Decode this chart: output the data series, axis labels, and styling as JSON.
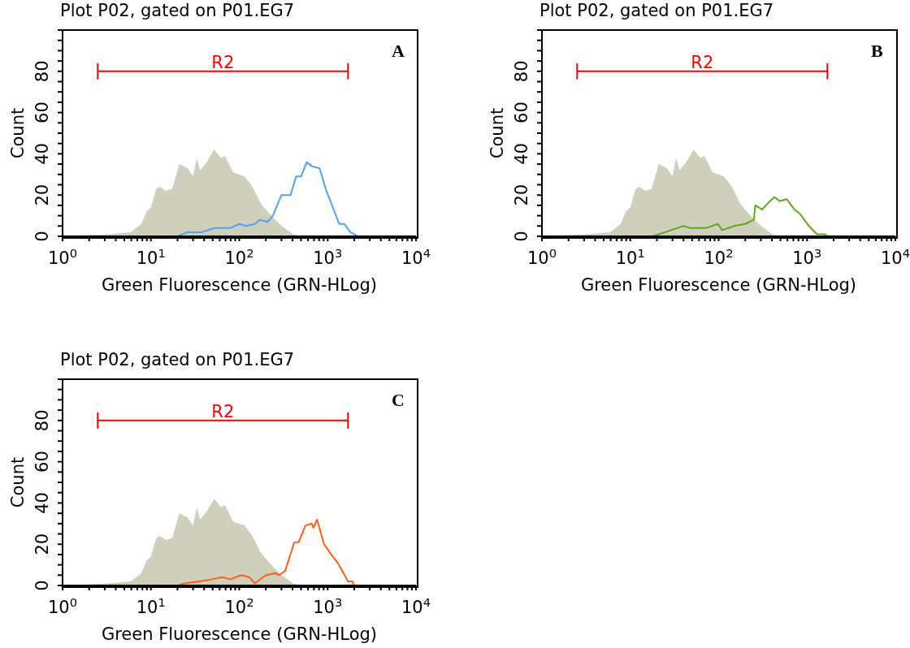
{
  "chart_data": [
    {
      "type": "line",
      "title": "Plot P02, gated on P01.EG7",
      "xlabel": "Green Fluorescence (GRN-HLog)",
      "ylabel": "Count",
      "annotations": [
        "A"
      ],
      "log": "x",
      "xlim": [
        1,
        10000
      ],
      "ylim": [
        0,
        100
      ],
      "xticks": [
        {
          "value": 1,
          "label": "10$^{0}$"
        },
        {
          "value": 2,
          "label": null
        },
        {
          "value": 3,
          "label": null
        },
        {
          "value": 4,
          "label": null
        },
        {
          "value": 5,
          "label": null
        },
        {
          "value": 6,
          "label": null
        },
        {
          "value": 7,
          "label": null
        },
        {
          "value": 8,
          "label": null
        },
        {
          "value": 9,
          "label": null
        },
        {
          "value": 10,
          "label": "10$^{1}$"
        },
        {
          "value": 20,
          "label": null
        },
        {
          "value": 30,
          "label": null
        },
        {
          "value": 40,
          "label": null
        },
        {
          "value": 50,
          "label": null
        },
        {
          "value": 60,
          "label": null
        },
        {
          "value": 70,
          "label": null
        },
        {
          "value": 80,
          "label": null
        },
        {
          "value": 90,
          "label": null
        },
        {
          "value": 100,
          "label": "10$^{2}$"
        },
        {
          "value": 200,
          "label": null
        },
        {
          "value": 300,
          "label": null
        },
        {
          "value": 400,
          "label": null
        },
        {
          "value": 500,
          "label": null
        },
        {
          "value": 600,
          "label": null
        },
        {
          "value": 700,
          "label": null
        },
        {
          "value": 800,
          "label": null
        },
        {
          "value": 900,
          "label": null
        },
        {
          "value": 1000,
          "label": "10$^{3}$"
        },
        {
          "value": 2000,
          "label": null
        },
        {
          "value": 3000,
          "label": null
        },
        {
          "value": 4000,
          "label": null
        },
        {
          "value": 5000,
          "label": null
        },
        {
          "value": 6000,
          "label": null
        },
        {
          "value": 7000,
          "label": null
        },
        {
          "value": 8000,
          "label": null
        },
        {
          "value": 9000,
          "label": null
        },
        {
          "value": 10000,
          "label": "10$^{4}$"
        }
      ],
      "yticks": [
        0,
        {
          "value": 5,
          "label": null
        },
        {
          "value": 10,
          "label": null
        },
        {
          "value": 15,
          "label": null
        },
        20,
        {
          "value": 25,
          "label": null
        },
        {
          "value": 30,
          "label": null
        },
        {
          "value": 35,
          "label": null
        },
        40,
        {
          "value": 45,
          "label": null
        },
        {
          "value": 50,
          "label": null
        },
        {
          "value": 55,
          "label": null
        },
        60,
        {
          "value": 65,
          "label": null
        },
        {
          "value": 70,
          "label": null
        },
        {
          "value": 75,
          "label": null
        },
        80,
        {
          "value": 85,
          "label": null
        },
        {
          "value": 90,
          "label": null
        },
        {
          "value": 95,
          "label": null
        },
        {
          "value": 100,
          "label": null
        }
      ],
      "series": [
        {
          "type": "area",
          "color": "#d0cfbc",
          "x": [
            1,
            3.3,
            5.9,
            7.8,
            8.9,
            10,
            11.5,
            12.6,
            14.8,
            17.4,
            21,
            26,
            30,
            33,
            36,
            43,
            52,
            62,
            69,
            85,
            115,
            141,
            174,
            229,
            302,
            407,
            501,
            10000
          ],
          "values": [
            0,
            1,
            2,
            6,
            12,
            14,
            23,
            24,
            22,
            23,
            35,
            33,
            29,
            38,
            32,
            36,
            42,
            38,
            39,
            31,
            29,
            24,
            16,
            10,
            5,
            1,
            0,
            0
          ]
        },
        {
          "type": "line",
          "color": "#4da3f5",
          "x": [
            1,
            20,
            26,
            38,
            52,
            79,
            100,
            120,
            150,
            170,
            210,
            240,
            300,
            380,
            440,
            500,
            580,
            660,
            810,
            950,
            1100,
            1350,
            1550,
            1800,
            2000,
            2200,
            10000
          ],
          "values": [
            0,
            0,
            2,
            2,
            4,
            4,
            6,
            5,
            6,
            8,
            7,
            10,
            20,
            20,
            29,
            29,
            36,
            34,
            33,
            23,
            16,
            6,
            6,
            2,
            1,
            0,
            0
          ]
        },
        {
          "type": "line",
          "name": "R2",
          "color": "#ff0000",
          "x": [
            2.5,
            1700
          ],
          "values": [
            80,
            80
          ]
        }
      ]
    },
    {
      "type": "line",
      "title": "Plot P02, gated on P01.EG7",
      "xlabel": "Green Fluorescence (GRN-HLog)",
      "ylabel": "Count",
      "annotations": [
        "B"
      ],
      "log": "x",
      "xlim": [
        1,
        10000
      ],
      "ylim": [
        0,
        100
      ],
      "xticks": [
        {
          "value": 1,
          "label": "10$^{0}$"
        },
        {
          "value": 2,
          "label": null
        },
        {
          "value": 3,
          "label": null
        },
        {
          "value": 4,
          "label": null
        },
        {
          "value": 5,
          "label": null
        },
        {
          "value": 6,
          "label": null
        },
        {
          "value": 7,
          "label": null
        },
        {
          "value": 8,
          "label": null
        },
        {
          "value": 9,
          "label": null
        },
        {
          "value": 10,
          "label": "10$^{1}$"
        },
        {
          "value": 20,
          "label": null
        },
        {
          "value": 30,
          "label": null
        },
        {
          "value": 40,
          "label": null
        },
        {
          "value": 50,
          "label": null
        },
        {
          "value": 60,
          "label": null
        },
        {
          "value": 70,
          "label": null
        },
        {
          "value": 80,
          "label": null
        },
        {
          "value": 90,
          "label": null
        },
        {
          "value": 100,
          "label": "10$^{2}$"
        },
        {
          "value": 200,
          "label": null
        },
        {
          "value": 300,
          "label": null
        },
        {
          "value": 400,
          "label": null
        },
        {
          "value": 500,
          "label": null
        },
        {
          "value": 600,
          "label": null
        },
        {
          "value": 700,
          "label": null
        },
        {
          "value": 800,
          "label": null
        },
        {
          "value": 900,
          "label": null
        },
        {
          "value": 1000,
          "label": "10$^{3}$"
        },
        {
          "value": 2000,
          "label": null
        },
        {
          "value": 3000,
          "label": null
        },
        {
          "value": 4000,
          "label": null
        },
        {
          "value": 5000,
          "label": null
        },
        {
          "value": 6000,
          "label": null
        },
        {
          "value": 7000,
          "label": null
        },
        {
          "value": 8000,
          "label": null
        },
        {
          "value": 9000,
          "label": null
        },
        {
          "value": 10000,
          "label": "10$^{4}$"
        }
      ],
      "yticks": [
        0,
        {
          "value": 5,
          "label": null
        },
        {
          "value": 10,
          "label": null
        },
        {
          "value": 15,
          "label": null
        },
        20,
        {
          "value": 25,
          "label": null
        },
        {
          "value": 30,
          "label": null
        },
        {
          "value": 35,
          "label": null
        },
        40,
        {
          "value": 45,
          "label": null
        },
        {
          "value": 50,
          "label": null
        },
        {
          "value": 55,
          "label": null
        },
        60,
        {
          "value": 65,
          "label": null
        },
        {
          "value": 70,
          "label": null
        },
        {
          "value": 75,
          "label": null
        },
        80,
        {
          "value": 85,
          "label": null
        },
        {
          "value": 90,
          "label": null
        },
        {
          "value": 95,
          "label": null
        },
        {
          "value": 100,
          "label": null
        }
      ],
      "series": [
        {
          "type": "area",
          "color": "#d0cfbc",
          "x": [
            1,
            3.3,
            5.9,
            7.8,
            8.9,
            10,
            11.5,
            12.6,
            14.8,
            17.4,
            21,
            26,
            30,
            33,
            36,
            43,
            52,
            62,
            69,
            85,
            115,
            141,
            174,
            229,
            302,
            407,
            501,
            10000
          ],
          "values": [
            0,
            1,
            2,
            6,
            12,
            14,
            23,
            24,
            22,
            23,
            35,
            33,
            29,
            38,
            32,
            36,
            42,
            38,
            39,
            31,
            29,
            24,
            16,
            10,
            5,
            1,
            0,
            0
          ]
        },
        {
          "type": "line",
          "color": "#5aaa1a",
          "x": [
            1,
            18,
            21,
            29,
            40,
            48,
            59,
            72,
            98,
            110,
            150,
            200,
            250,
            260,
            310,
            380,
            430,
            490,
            590,
            720,
            830,
            1050,
            1300,
            1600,
            1700,
            10000
          ],
          "values": [
            0,
            0,
            1,
            3,
            5,
            4,
            4,
            4,
            6,
            3,
            5,
            6,
            8,
            15,
            13,
            17,
            19,
            17,
            18,
            13,
            11,
            5,
            1,
            1,
            0,
            0
          ]
        },
        {
          "type": "line",
          "name": "R2",
          "color": "#ff0000",
          "x": [
            2.5,
            1700
          ],
          "values": [
            80,
            80
          ]
        }
      ]
    },
    {
      "type": "line",
      "title": "Plot P02, gated on P01.EG7",
      "xlabel": "Green Fluorescence (GRN-HLog)",
      "ylabel": "Count",
      "annotations": [
        "C"
      ],
      "log": "x",
      "xlim": [
        1,
        10000
      ],
      "ylim": [
        0,
        100
      ],
      "xticks": [
        {
          "value": 1,
          "label": "10$^{0}$"
        },
        {
          "value": 2,
          "label": null
        },
        {
          "value": 3,
          "label": null
        },
        {
          "value": 4,
          "label": null
        },
        {
          "value": 5,
          "label": null
        },
        {
          "value": 6,
          "label": null
        },
        {
          "value": 7,
          "label": null
        },
        {
          "value": 8,
          "label": null
        },
        {
          "value": 9,
          "label": null
        },
        {
          "value": 10,
          "label": "10$^{1}$"
        },
        {
          "value": 20,
          "label": null
        },
        {
          "value": 30,
          "label": null
        },
        {
          "value": 40,
          "label": null
        },
        {
          "value": 50,
          "label": null
        },
        {
          "value": 60,
          "label": null
        },
        {
          "value": 70,
          "label": null
        },
        {
          "value": 80,
          "label": null
        },
        {
          "value": 90,
          "label": null
        },
        {
          "value": 100,
          "label": "10$^{2}$"
        },
        {
          "value": 200,
          "label": null
        },
        {
          "value": 300,
          "label": null
        },
        {
          "value": 400,
          "label": null
        },
        {
          "value": 500,
          "label": null
        },
        {
          "value": 600,
          "label": null
        },
        {
          "value": 700,
          "label": null
        },
        {
          "value": 800,
          "label": null
        },
        {
          "value": 900,
          "label": null
        },
        {
          "value": 1000,
          "label": "10$^{3}$"
        },
        {
          "value": 2000,
          "label": null
        },
        {
          "value": 3000,
          "label": null
        },
        {
          "value": 4000,
          "label": null
        },
        {
          "value": 5000,
          "label": null
        },
        {
          "value": 6000,
          "label": null
        },
        {
          "value": 7000,
          "label": null
        },
        {
          "value": 8000,
          "label": null
        },
        {
          "value": 9000,
          "label": null
        },
        {
          "value": 10000,
          "label": "10$^{4}$"
        }
      ],
      "yticks": [
        0,
        {
          "value": 5,
          "label": null
        },
        {
          "value": 10,
          "label": null
        },
        {
          "value": 15,
          "label": null
        },
        20,
        {
          "value": 25,
          "label": null
        },
        {
          "value": 30,
          "label": null
        },
        {
          "value": 35,
          "label": null
        },
        40,
        {
          "value": 45,
          "label": null
        },
        {
          "value": 50,
          "label": null
        },
        {
          "value": 55,
          "label": null
        },
        60,
        {
          "value": 65,
          "label": null
        },
        {
          "value": 70,
          "label": null
        },
        {
          "value": 75,
          "label": null
        },
        80,
        {
          "value": 85,
          "label": null
        },
        {
          "value": 90,
          "label": null
        },
        {
          "value": 95,
          "label": null
        },
        {
          "value": 100,
          "label": null
        }
      ],
      "series": [
        {
          "type": "area",
          "color": "#d0cfbc",
          "x": [
            1,
            3.3,
            5.9,
            7.8,
            8.9,
            10,
            11.5,
            12.6,
            14.8,
            17.4,
            21,
            26,
            30,
            33,
            36,
            43,
            52,
            62,
            69,
            85,
            115,
            141,
            174,
            229,
            302,
            407,
            501,
            10000
          ],
          "values": [
            0,
            1,
            2,
            6,
            12,
            14,
            23,
            24,
            22,
            23,
            35,
            33,
            29,
            38,
            32,
            36,
            42,
            38,
            39,
            31,
            29,
            24,
            16,
            10,
            5,
            1,
            0,
            0
          ]
        },
        {
          "type": "line",
          "color": "#ff6010",
          "x": [
            1,
            20,
            24,
            35,
            49,
            65,
            79,
            105,
            130,
            150,
            200,
            260,
            280,
            330,
            420,
            470,
            560,
            660,
            690,
            760,
            910,
            1100,
            1300,
            1700,
            1900,
            2000,
            10000
          ],
          "values": [
            0,
            0,
            1,
            2,
            3,
            4,
            3,
            5,
            4,
            1,
            5,
            6,
            5,
            7,
            21,
            21,
            29,
            30,
            28,
            32,
            20,
            15,
            11,
            2,
            2,
            0,
            0
          ]
        },
        {
          "type": "line",
          "name": "R2",
          "color": "#ff0000",
          "x": [
            2.5,
            1700
          ],
          "values": [
            80,
            80
          ]
        }
      ]
    }
  ]
}
